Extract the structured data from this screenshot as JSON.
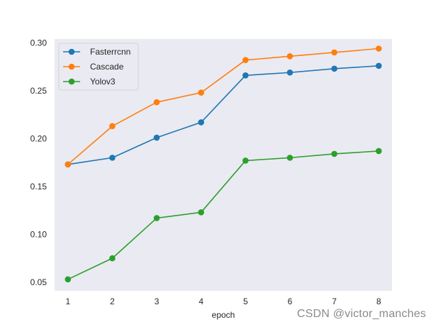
{
  "chart_data": {
    "type": "line",
    "x": [
      1,
      2,
      3,
      4,
      5,
      6,
      7,
      8
    ],
    "xlabel": "epoch",
    "ylabel": "",
    "title": "",
    "xlim": [
      0.7,
      8.3
    ],
    "ylim": [
      0.041,
      0.304
    ],
    "xticks": [
      1,
      2,
      3,
      4,
      5,
      6,
      7,
      8
    ],
    "yticks": [
      0.05,
      0.1,
      0.15,
      0.2,
      0.25,
      0.3
    ],
    "ytick_labels": [
      "0.05",
      "0.10",
      "0.15",
      "0.20",
      "0.25",
      "0.30"
    ],
    "grid": false,
    "legend_position": "top-left",
    "series": [
      {
        "name": "Fasterrcnn",
        "color": "#1f77b4",
        "values": [
          0.173,
          0.18,
          0.201,
          0.217,
          0.266,
          0.269,
          0.273,
          0.276
        ]
      },
      {
        "name": "Cascade",
        "color": "#ff7f0e",
        "values": [
          0.173,
          0.213,
          0.238,
          0.248,
          0.282,
          0.286,
          0.29,
          0.294
        ]
      },
      {
        "name": "Yolov3",
        "color": "#2ca02c",
        "values": [
          0.053,
          0.075,
          0.117,
          0.123,
          0.177,
          0.18,
          0.184,
          0.187
        ]
      }
    ]
  },
  "watermark": "CSDN @victor_manches"
}
